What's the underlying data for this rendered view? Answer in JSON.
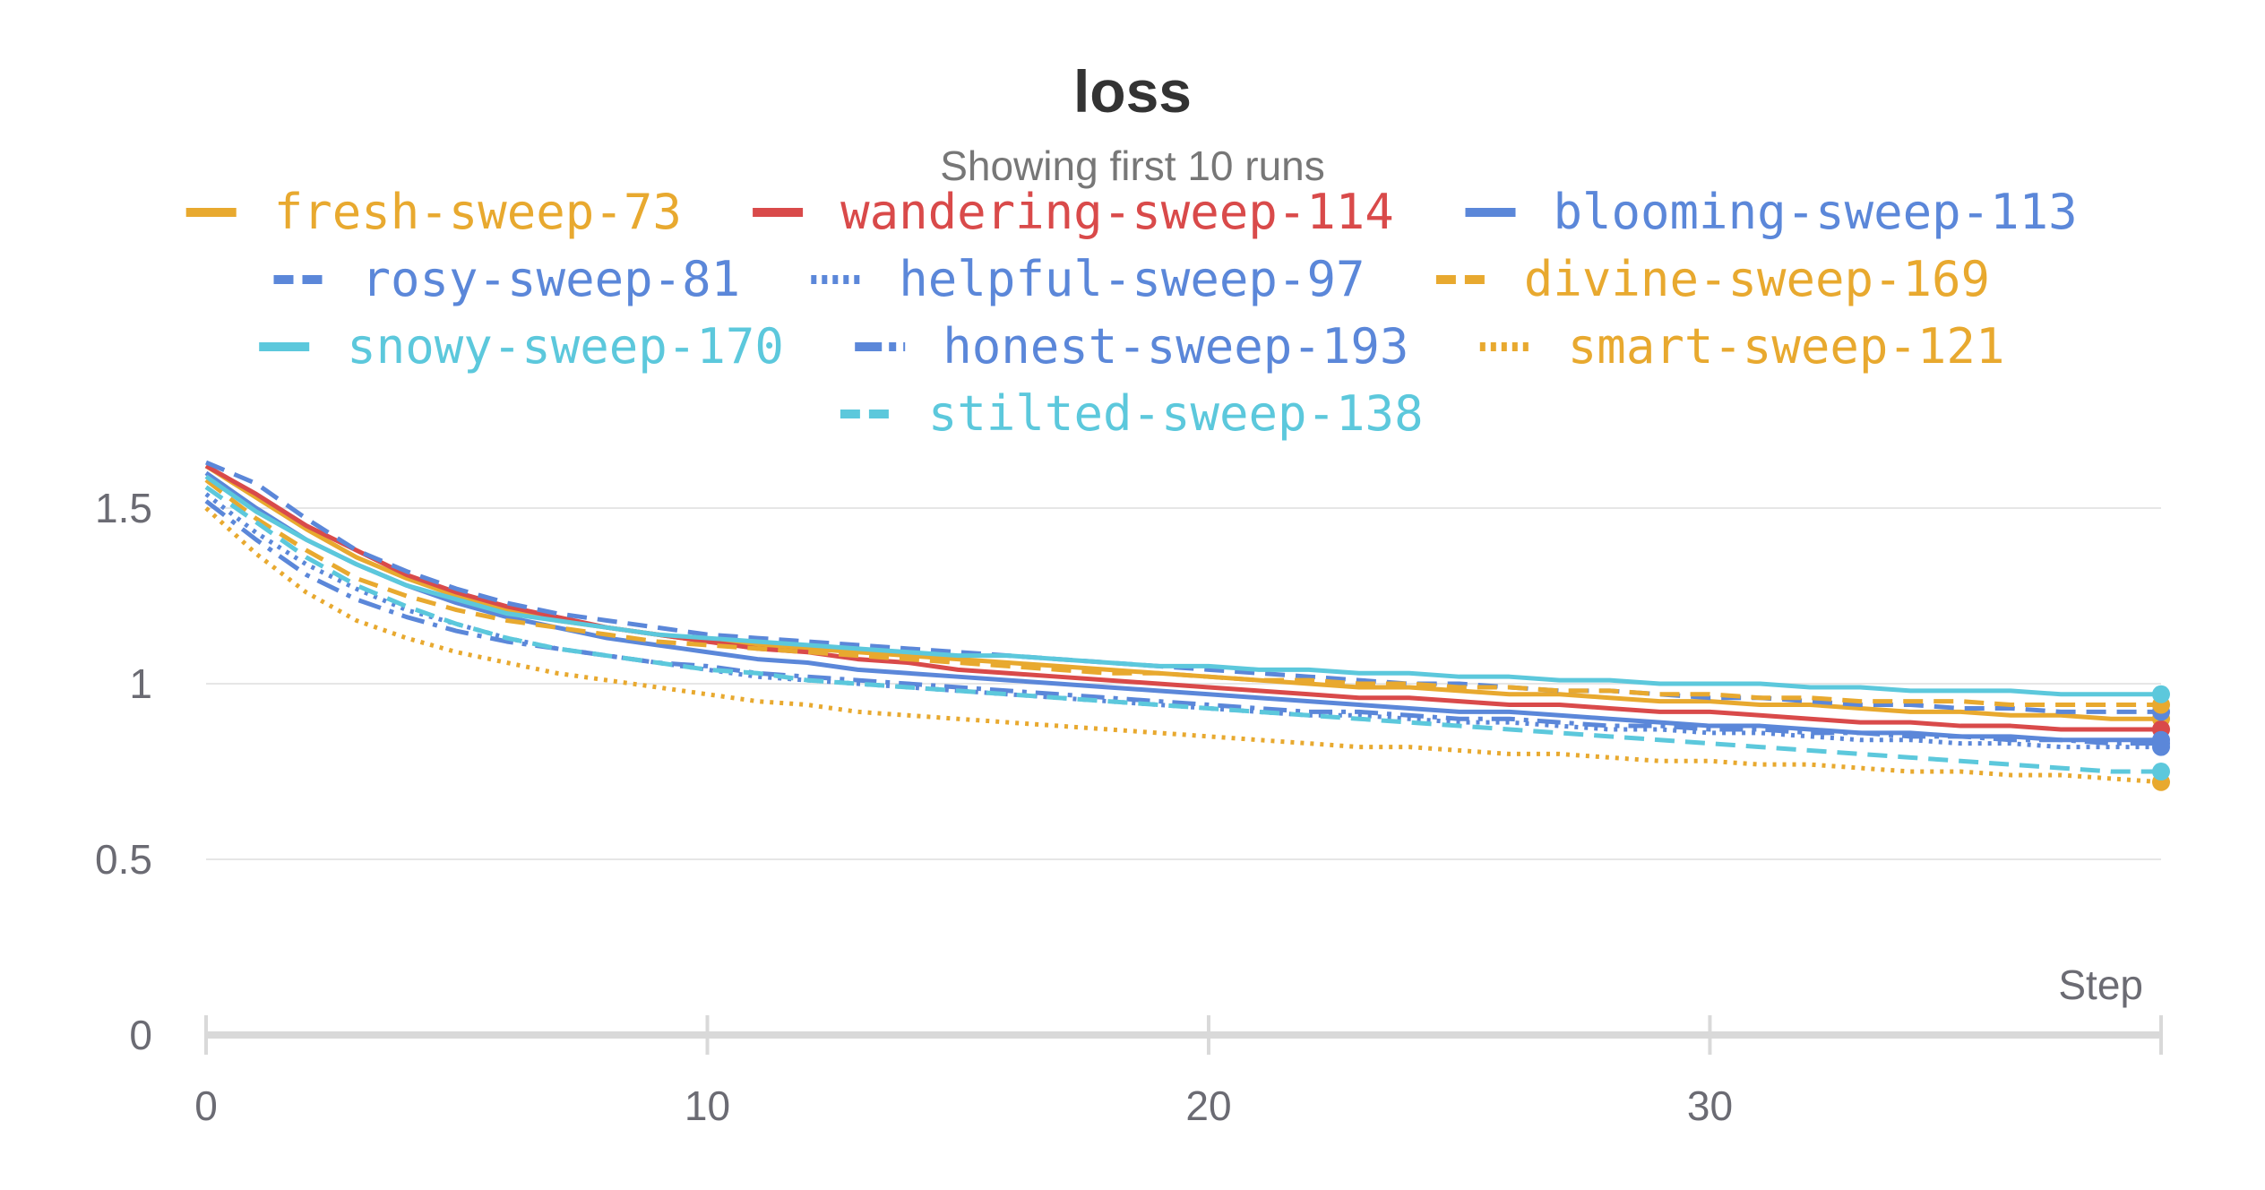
{
  "chart_data": {
    "type": "line",
    "title": "loss",
    "subtitle": "Showing first 10 runs",
    "xlabel": "Step",
    "ylabel": "",
    "xlim": [
      0,
      39
    ],
    "ylim": [
      0,
      1.62
    ],
    "x_ticks": [
      0,
      10,
      20,
      30
    ],
    "y_ticks": [
      0,
      0.5,
      1,
      1.5
    ],
    "x_tick_labels": [
      "0",
      "10",
      "20",
      "30"
    ],
    "y_tick_labels": [
      "0",
      "0.5",
      "1",
      "1.5"
    ],
    "grid": true,
    "legend": "top",
    "x": [
      0,
      1,
      2,
      3,
      4,
      5,
      6,
      7,
      8,
      9,
      10,
      11,
      12,
      13,
      14,
      15,
      16,
      17,
      18,
      19,
      20,
      21,
      22,
      23,
      24,
      25,
      26,
      27,
      28,
      29,
      30,
      31,
      32,
      33,
      34,
      35,
      36,
      37,
      38,
      39
    ],
    "series": [
      {
        "name": "fresh-sweep-73",
        "color": "#e8a92f",
        "dash": "solid",
        "values": [
          1.62,
          1.53,
          1.44,
          1.36,
          1.3,
          1.25,
          1.21,
          1.18,
          1.16,
          1.14,
          1.12,
          1.11,
          1.1,
          1.09,
          1.08,
          1.07,
          1.06,
          1.05,
          1.04,
          1.03,
          1.02,
          1.01,
          1.0,
          0.99,
          0.99,
          0.98,
          0.97,
          0.97,
          0.96,
          0.95,
          0.95,
          0.94,
          0.94,
          0.93,
          0.92,
          0.92,
          0.91,
          0.91,
          0.9,
          0.9
        ]
      },
      {
        "name": "wandering-sweep-114",
        "color": "#d94a4a",
        "dash": "solid",
        "values": [
          1.62,
          1.54,
          1.45,
          1.38,
          1.31,
          1.26,
          1.22,
          1.19,
          1.16,
          1.14,
          1.12,
          1.1,
          1.09,
          1.07,
          1.06,
          1.04,
          1.03,
          1.02,
          1.01,
          1.0,
          0.99,
          0.98,
          0.97,
          0.96,
          0.96,
          0.95,
          0.94,
          0.94,
          0.93,
          0.92,
          0.92,
          0.91,
          0.9,
          0.89,
          0.89,
          0.88,
          0.88,
          0.87,
          0.87,
          0.87
        ]
      },
      {
        "name": "blooming-sweep-113",
        "color": "#5b87d9",
        "dash": "solid",
        "values": [
          1.6,
          1.5,
          1.41,
          1.34,
          1.28,
          1.23,
          1.19,
          1.16,
          1.13,
          1.11,
          1.09,
          1.07,
          1.06,
          1.04,
          1.03,
          1.02,
          1.01,
          1.0,
          0.99,
          0.98,
          0.97,
          0.96,
          0.95,
          0.94,
          0.93,
          0.92,
          0.92,
          0.91,
          0.9,
          0.89,
          0.88,
          0.88,
          0.87,
          0.86,
          0.86,
          0.85,
          0.85,
          0.84,
          0.84,
          0.84
        ]
      },
      {
        "name": "rosy-sweep-81",
        "color": "#5b87d9",
        "dash": "dashed",
        "values": [
          1.63,
          1.57,
          1.47,
          1.38,
          1.32,
          1.27,
          1.23,
          1.2,
          1.18,
          1.16,
          1.14,
          1.13,
          1.12,
          1.11,
          1.1,
          1.09,
          1.08,
          1.07,
          1.06,
          1.05,
          1.04,
          1.03,
          1.02,
          1.01,
          1.0,
          1.0,
          0.99,
          0.98,
          0.98,
          0.97,
          0.96,
          0.96,
          0.95,
          0.94,
          0.94,
          0.93,
          0.93,
          0.92,
          0.92,
          0.92
        ]
      },
      {
        "name": "helpful-sweep-97",
        "color": "#5b87d9",
        "dash": "dotted",
        "values": [
          1.54,
          1.43,
          1.34,
          1.27,
          1.21,
          1.17,
          1.13,
          1.1,
          1.08,
          1.06,
          1.04,
          1.02,
          1.01,
          1.0,
          0.99,
          0.98,
          0.97,
          0.96,
          0.95,
          0.94,
          0.93,
          0.92,
          0.91,
          0.91,
          0.9,
          0.89,
          0.89,
          0.88,
          0.87,
          0.87,
          0.86,
          0.86,
          0.85,
          0.84,
          0.84,
          0.83,
          0.83,
          0.82,
          0.82,
          0.82
        ]
      },
      {
        "name": "divine-sweep-169",
        "color": "#e8a92f",
        "dash": "dashed",
        "values": [
          1.58,
          1.47,
          1.38,
          1.3,
          1.25,
          1.21,
          1.18,
          1.16,
          1.14,
          1.12,
          1.11,
          1.1,
          1.09,
          1.08,
          1.07,
          1.06,
          1.05,
          1.04,
          1.03,
          1.03,
          1.02,
          1.01,
          1.01,
          1.0,
          1.0,
          0.99,
          0.99,
          0.98,
          0.98,
          0.97,
          0.97,
          0.96,
          0.96,
          0.95,
          0.95,
          0.95,
          0.94,
          0.94,
          0.94,
          0.94
        ]
      },
      {
        "name": "snowy-sweep-170",
        "color": "#5cc8dc",
        "dash": "solid",
        "values": [
          1.59,
          1.49,
          1.41,
          1.34,
          1.28,
          1.24,
          1.2,
          1.18,
          1.16,
          1.14,
          1.13,
          1.12,
          1.11,
          1.1,
          1.09,
          1.08,
          1.08,
          1.07,
          1.06,
          1.05,
          1.05,
          1.04,
          1.04,
          1.03,
          1.03,
          1.02,
          1.02,
          1.01,
          1.01,
          1.0,
          1.0,
          1.0,
          0.99,
          0.99,
          0.98,
          0.98,
          0.98,
          0.97,
          0.97,
          0.97
        ]
      },
      {
        "name": "honest-sweep-193",
        "color": "#5b87d9",
        "dash": "dashdot",
        "values": [
          1.52,
          1.41,
          1.31,
          1.24,
          1.19,
          1.15,
          1.12,
          1.1,
          1.08,
          1.06,
          1.05,
          1.03,
          1.02,
          1.01,
          1.0,
          0.99,
          0.98,
          0.97,
          0.96,
          0.95,
          0.94,
          0.93,
          0.92,
          0.92,
          0.91,
          0.9,
          0.9,
          0.89,
          0.88,
          0.88,
          0.87,
          0.87,
          0.86,
          0.86,
          0.85,
          0.85,
          0.84,
          0.84,
          0.83,
          0.83
        ]
      },
      {
        "name": "smart-sweep-121",
        "color": "#e8a92f",
        "dash": "dotted",
        "values": [
          1.5,
          1.37,
          1.26,
          1.18,
          1.13,
          1.09,
          1.06,
          1.03,
          1.01,
          0.99,
          0.97,
          0.95,
          0.94,
          0.92,
          0.91,
          0.9,
          0.89,
          0.88,
          0.87,
          0.86,
          0.85,
          0.84,
          0.83,
          0.82,
          0.82,
          0.81,
          0.8,
          0.8,
          0.79,
          0.78,
          0.78,
          0.77,
          0.77,
          0.76,
          0.75,
          0.75,
          0.74,
          0.74,
          0.73,
          0.72
        ]
      },
      {
        "name": "stilted-sweep-138",
        "color": "#5cc8dc",
        "dash": "dashed",
        "values": [
          1.56,
          1.46,
          1.36,
          1.28,
          1.22,
          1.17,
          1.13,
          1.1,
          1.08,
          1.06,
          1.04,
          1.03,
          1.01,
          1.0,
          0.99,
          0.98,
          0.97,
          0.96,
          0.95,
          0.94,
          0.93,
          0.92,
          0.91,
          0.9,
          0.89,
          0.88,
          0.87,
          0.86,
          0.85,
          0.84,
          0.83,
          0.82,
          0.81,
          0.8,
          0.79,
          0.78,
          0.77,
          0.76,
          0.75,
          0.75
        ]
      }
    ]
  }
}
